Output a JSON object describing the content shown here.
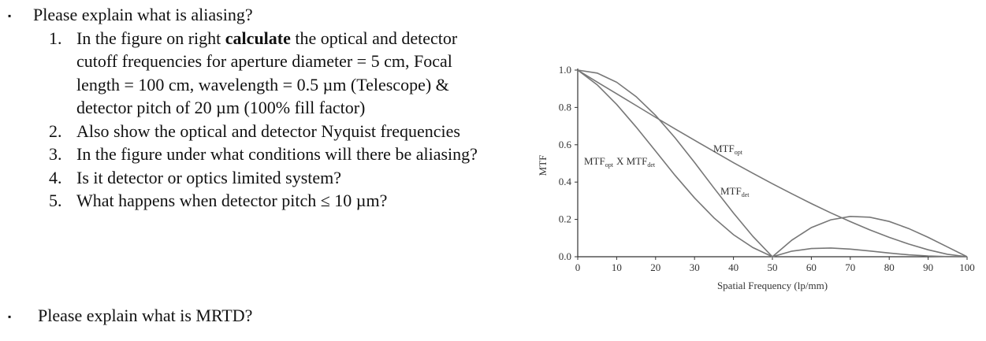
{
  "document": {
    "bullets": [
      {
        "text": "Please explain what is aliasing?",
        "items": [
          {
            "number": "1.",
            "parts": [
              "In the figure on right ",
              "calculate",
              " the optical and detector cutoff frequencies for aperture diameter = 5 cm, Focal length = 100 cm, wavelength = 0.5 µm (Telescope) & detector pitch of 20 µm (100% fill factor)"
            ]
          },
          {
            "number": "2.",
            "parts": [
              "Also show the optical and detector Nyquist frequencies"
            ]
          },
          {
            "number": "3.",
            "parts": [
              "In the figure under what conditions will there be aliasing?"
            ]
          },
          {
            "number": "4.",
            "parts": [
              "Is it detector or optics limited system?"
            ]
          },
          {
            "number": "5.",
            "parts": [
              "What happens when detector pitch ≤ 10 µm?"
            ]
          }
        ]
      },
      {
        "text": "Please explain what is MRTD?",
        "items": []
      }
    ]
  },
  "chart_data": {
    "type": "line",
    "x_label": "Spatial Frequency (lp/mm)",
    "y_label": "MTF",
    "x": [
      0,
      5,
      10,
      15,
      20,
      25,
      30,
      35,
      40,
      45,
      50,
      55,
      60,
      65,
      70,
      75,
      80,
      85,
      90,
      95,
      100
    ],
    "series": [
      {
        "name": "MTF",
        "sub": "opt",
        "color": "#777777",
        "values": [
          1,
          0.936,
          0.873,
          0.81,
          0.747,
          0.685,
          0.624,
          0.564,
          0.504,
          0.447,
          0.391,
          0.337,
          0.285,
          0.235,
          0.188,
          0.144,
          0.104,
          0.068,
          0.037,
          0.013,
          0
        ]
      },
      {
        "name": "MTF",
        "sub": "det",
        "color": "#777777",
        "values": [
          1,
          0.984,
          0.935,
          0.858,
          0.757,
          0.637,
          0.505,
          0.368,
          0.234,
          0.109,
          0,
          0.089,
          0.156,
          0.198,
          0.216,
          0.212,
          0.189,
          0.151,
          0.104,
          0.052,
          0
        ]
      },
      {
        "name": "MTF",
        "sub": "opt",
        "name2": "X MTF",
        "sub2": "det",
        "color": "#777777",
        "values": [
          1,
          0.921,
          0.816,
          0.695,
          0.566,
          0.436,
          0.315,
          0.208,
          0.118,
          0.049,
          0,
          0.03,
          0.044,
          0.047,
          0.041,
          0.031,
          0.02,
          0.01,
          0.004,
          0.001,
          0
        ]
      }
    ],
    "xlim": [
      0,
      100
    ],
    "ylim": [
      0,
      1
    ],
    "xticks": [
      0,
      10,
      20,
      30,
      40,
      50,
      60,
      70,
      80,
      90,
      100
    ],
    "yticks": [
      {
        "value": 0,
        "label": "0.0"
      },
      {
        "value": 0.2,
        "label": "0.2"
      },
      {
        "value": 0.4,
        "label": "0.4"
      },
      {
        "value": 0.6,
        "label": "0.6"
      },
      {
        "value": 0.8,
        "label": "0.8"
      },
      {
        "value": 1,
        "label": "1.0"
      }
    ]
  }
}
